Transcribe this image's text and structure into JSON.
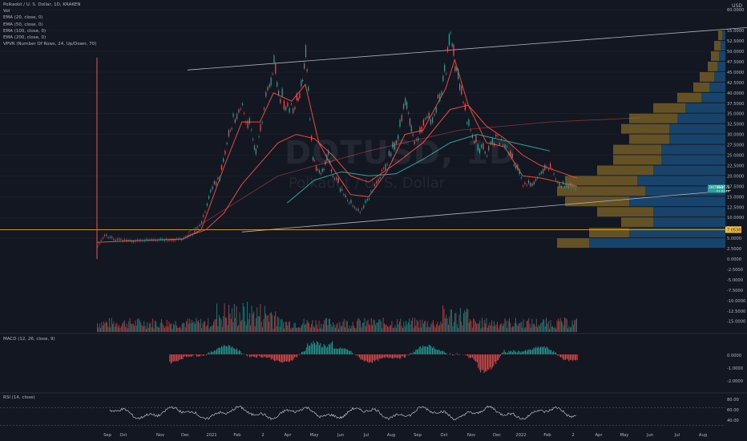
{
  "legend": {
    "symbol": "Polkadot / U. S. Dollar, 1D, KRAKEN",
    "lines": [
      "Vol",
      "EMA (20, close, 0)",
      "EMA (50, close, 0)",
      "EMA (100, close, 0)",
      "EMA (200, close, 0)",
      "VPVR (Number Of Rows, 24, Up/Down, 70)"
    ]
  },
  "watermark": {
    "ticker": "DOTUSD, 1D",
    "name": "Polkadot / U. S. Dollar"
  },
  "currency": "USD",
  "macd_label": "MACD (12, 26, close, 9)",
  "rsi_label": "RSI (14, close)",
  "colors": {
    "up": "#26a69a",
    "down": "#ef5350",
    "ema_red": "#e74c3c",
    "ema_teal": "#26a69a",
    "bg": "#131722"
  },
  "chart_data": {
    "type": "candlestick",
    "price_axis": {
      "ticks": [
        "65.0000",
        "60.0000",
        "55.0000",
        "52.5000",
        "50.0000",
        "47.5000",
        "45.0000",
        "42.5000",
        "40.0000",
        "37.5000",
        "35.0000",
        "32.5000",
        "30.0000",
        "27.5000",
        "25.0000",
        "22.5000",
        "20.0000",
        "17.5000",
        "15.0000",
        "12.5000",
        "10.0000",
        "7.5000",
        "5.0000",
        "2.5000",
        "0.0000",
        "-2.5000",
        "-5.0000",
        "-7.5000",
        "-10.0000",
        "-12.5000",
        "-15.0000"
      ],
      "last_price_label": "DOTUSD",
      "last_price": "16.8773",
      "last_price_sub": "01:02:16",
      "marker_price": "7.0530"
    },
    "time_axis": [
      "Sep",
      "Oct",
      "Nov",
      "Dec",
      "2021",
      "Feb",
      "2",
      "Apr",
      "May",
      "Jun",
      "Jul",
      "Aug",
      "Sep",
      "Oct",
      "Nov",
      "Dec",
      "2022",
      "Feb",
      "2",
      "Apr",
      "May",
      "Jun",
      "Jul",
      "Aug"
    ],
    "price_path": [
      [
        0,
        3.0
      ],
      [
        8,
        5.6
      ],
      [
        20,
        4.6
      ],
      [
        40,
        4.2
      ],
      [
        60,
        4.6
      ],
      [
        80,
        4.4
      ],
      [
        95,
        4.8
      ],
      [
        105,
        5.8
      ],
      [
        115,
        8.5
      ],
      [
        125,
        16.0
      ],
      [
        135,
        19.5
      ],
      [
        145,
        30.0
      ],
      [
        150,
        33.0
      ],
      [
        160,
        36.0
      ],
      [
        170,
        30.0
      ],
      [
        175,
        26.0
      ],
      [
        180,
        32.0
      ],
      [
        190,
        42.0
      ],
      [
        195,
        46.0
      ],
      [
        200,
        40.0
      ],
      [
        210,
        35.5
      ],
      [
        220,
        37.0
      ],
      [
        225,
        41.0
      ],
      [
        230,
        49.0
      ],
      [
        233,
        39.0
      ],
      [
        238,
        24.0
      ],
      [
        245,
        20.0
      ],
      [
        250,
        22.0
      ],
      [
        255,
        25.0
      ],
      [
        260,
        20.0
      ],
      [
        270,
        16.0
      ],
      [
        280,
        13.0
      ],
      [
        290,
        11.0
      ],
      [
        300,
        15.0
      ],
      [
        310,
        19.0
      ],
      [
        320,
        23.0
      ],
      [
        330,
        28.0
      ],
      [
        340,
        37.0
      ],
      [
        345,
        33.0
      ],
      [
        350,
        27.0
      ],
      [
        360,
        32.0
      ],
      [
        370,
        34.0
      ],
      [
        380,
        40.0
      ],
      [
        385,
        46.0
      ],
      [
        390,
        54.0
      ],
      [
        395,
        47.0
      ],
      [
        400,
        40.0
      ],
      [
        410,
        31.0
      ],
      [
        420,
        27.0
      ],
      [
        430,
        25.0
      ],
      [
        440,
        29.0
      ],
      [
        450,
        27.0
      ],
      [
        460,
        23.0
      ],
      [
        470,
        17.5
      ],
      [
        480,
        18.0
      ],
      [
        490,
        20.5
      ],
      [
        500,
        22.0
      ],
      [
        510,
        18.0
      ],
      [
        520,
        17.0
      ],
      [
        530,
        16.8
      ]
    ],
    "ema_fast": [
      [
        0,
        4.0
      ],
      [
        40,
        4.4
      ],
      [
        95,
        4.8
      ],
      [
        115,
        7.0
      ],
      [
        125,
        13.0
      ],
      [
        140,
        22.0
      ],
      [
        160,
        33.0
      ],
      [
        180,
        33.0
      ],
      [
        195,
        40.0
      ],
      [
        215,
        38.0
      ],
      [
        230,
        42.0
      ],
      [
        245,
        28.0
      ],
      [
        260,
        22.0
      ],
      [
        280,
        15.5
      ],
      [
        300,
        15.0
      ],
      [
        320,
        21.0
      ],
      [
        340,
        30.0
      ],
      [
        360,
        31.0
      ],
      [
        385,
        41.0
      ],
      [
        395,
        48.0
      ],
      [
        410,
        37.0
      ],
      [
        430,
        28.0
      ],
      [
        450,
        27.0
      ],
      [
        470,
        20.0
      ],
      [
        490,
        19.5
      ],
      [
        510,
        18.5
      ],
      [
        530,
        17.5
      ]
    ],
    "ema_slow": [
      [
        100,
        5.5
      ],
      [
        120,
        7.0
      ],
      [
        140,
        11.0
      ],
      [
        160,
        18.0
      ],
      [
        180,
        23.0
      ],
      [
        200,
        28.0
      ],
      [
        220,
        30.0
      ],
      [
        240,
        29.0
      ],
      [
        260,
        25.0
      ],
      [
        280,
        20.0
      ],
      [
        300,
        18.5
      ],
      [
        330,
        23.0
      ],
      [
        360,
        28.0
      ],
      [
        390,
        36.0
      ],
      [
        410,
        37.0
      ],
      [
        430,
        32.0
      ],
      [
        450,
        29.0
      ],
      [
        470,
        25.0
      ],
      [
        490,
        22.5
      ],
      [
        510,
        21.0
      ],
      [
        530,
        19.5
      ]
    ],
    "ema_100": [
      [
        210,
        13.5
      ],
      [
        240,
        19.0
      ],
      [
        270,
        21.0
      ],
      [
        300,
        20.0
      ],
      [
        330,
        20.5
      ],
      [
        360,
        24.0
      ],
      [
        390,
        28.0
      ],
      [
        420,
        30.0
      ],
      [
        450,
        28.5
      ],
      [
        480,
        27.0
      ],
      [
        500,
        26.0
      ]
    ],
    "ema_200": [
      [
        100,
        6.3
      ],
      [
        200,
        20.0
      ],
      [
        300,
        26.0
      ],
      [
        400,
        31.0
      ],
      [
        500,
        33.0
      ],
      [
        600,
        34.0
      ]
    ],
    "channel_upper": [
      [
        100,
        45.5
      ],
      [
        735,
        56.0
      ]
    ],
    "channel_lower": [
      [
        160,
        6.5
      ],
      [
        700,
        16.5
      ]
    ],
    "horizontal_level": 7.053,
    "vpvr_rows": [
      {
        "price": 3.75,
        "up": 40,
        "down": 170
      },
      {
        "price": 6.25,
        "up": 50,
        "down": 120
      },
      {
        "price": 8.75,
        "up": 40,
        "down": 90
      },
      {
        "price": 11.25,
        "up": 70,
        "down": 90
      },
      {
        "price": 13.75,
        "up": 80,
        "down": 120
      },
      {
        "price": 16.25,
        "up": 110,
        "down": 100
      },
      {
        "price": 18.75,
        "up": 90,
        "down": 110
      },
      {
        "price": 21.25,
        "up": 70,
        "down": 90
      },
      {
        "price": 23.75,
        "up": 60,
        "down": 80
      },
      {
        "price": 26.25,
        "up": 60,
        "down": 80
      },
      {
        "price": 28.75,
        "up": 50,
        "down": 70
      },
      {
        "price": 31.25,
        "up": 60,
        "down": 70
      },
      {
        "price": 33.75,
        "up": 60,
        "down": 60
      },
      {
        "price": 36.25,
        "up": 40,
        "down": 50
      },
      {
        "price": 38.75,
        "up": 30,
        "down": 30
      },
      {
        "price": 41.25,
        "up": 20,
        "down": 20
      },
      {
        "price": 43.75,
        "up": 18,
        "down": 14
      },
      {
        "price": 46.25,
        "up": 12,
        "down": 10
      },
      {
        "price": 48.75,
        "up": 10,
        "down": 8
      },
      {
        "price": 51.25,
        "up": 8,
        "down": 6
      },
      {
        "price": 53.75,
        "up": 5,
        "down": 4
      }
    ],
    "macd_axis": [
      "0.0000",
      "-1.0000",
      "-2.0000"
    ],
    "rsi_axis": [
      "80.00",
      "60.00",
      "40.00"
    ]
  }
}
